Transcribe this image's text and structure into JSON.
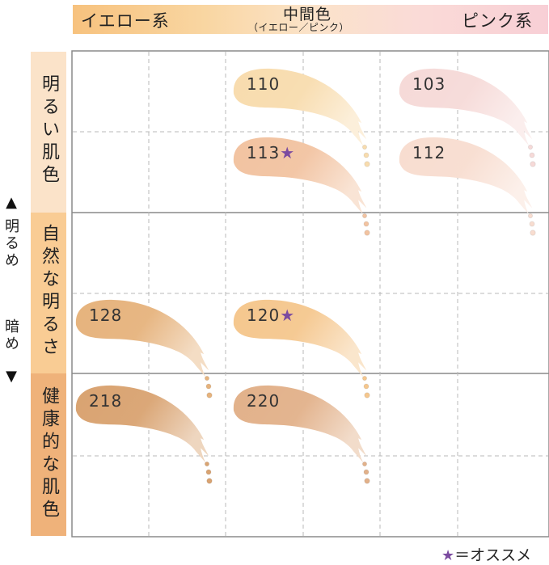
{
  "header": {
    "yellow": "イエロー系",
    "middle": "中間色",
    "middle_sub": "（イエロー／ピンク）",
    "pink": "ピンク系",
    "gradient_colors": [
      "#f7c27e",
      "#fbe3c9",
      "#f8cfd6"
    ]
  },
  "rows": [
    {
      "label": "明るい肌色",
      "color": "#fbe3c9"
    },
    {
      "label": "自然な明るさ",
      "color": "#f9cc94"
    },
    {
      "label": "健康的な肌色",
      "color": "#efb27a"
    }
  ],
  "side": {
    "up_arrow": "▲",
    "bright": "明るめ",
    "dark": "暗め",
    "down_arrow": "▼"
  },
  "swatches": [
    {
      "code": "110",
      "star": "",
      "color": "#f8dcae"
    },
    {
      "code": "103",
      "star": "",
      "color": "#f6dad8"
    },
    {
      "code": "113",
      "star": "★",
      "color": "#f2c3a1"
    },
    {
      "code": "112",
      "star": "",
      "color": "#f8ddd0"
    },
    {
      "code": "128",
      "star": "",
      "color": "#e6b37d"
    },
    {
      "code": "120",
      "star": "★",
      "color": "#f5c78e"
    },
    {
      "code": "218",
      "star": "",
      "color": "#d9a371"
    },
    {
      "code": "220",
      "star": "",
      "color": "#e2b18a"
    }
  ],
  "legend": {
    "star": "★",
    "text": "＝オススメ",
    "star_color": "#7b4ba0"
  }
}
